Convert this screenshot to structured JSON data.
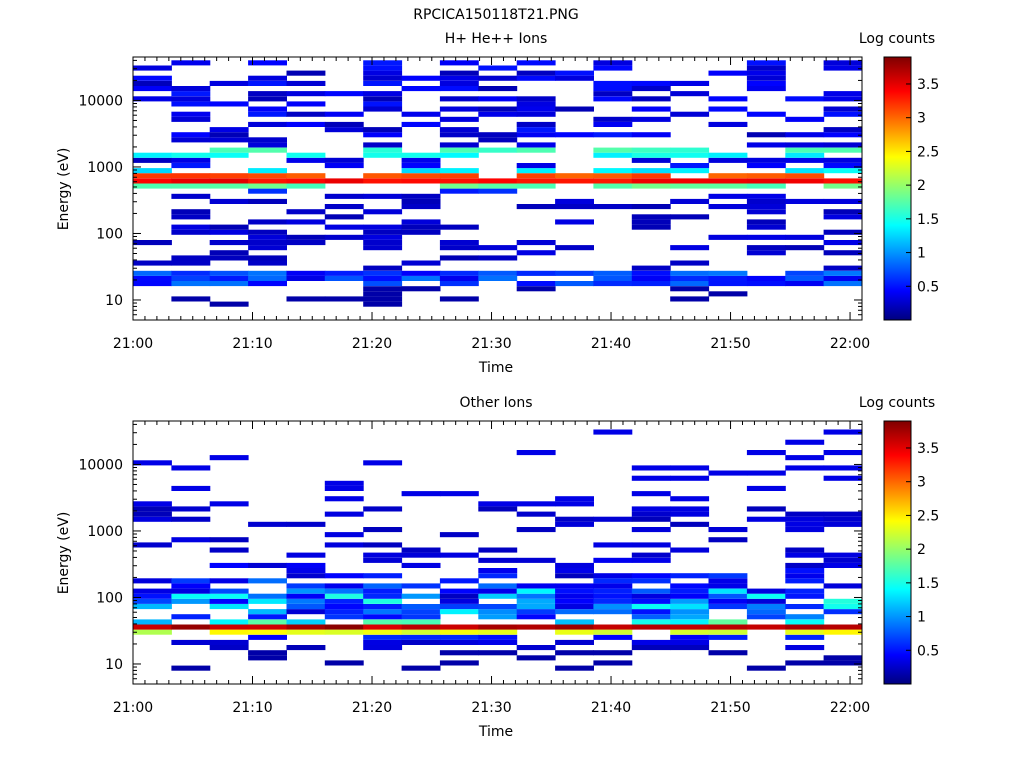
{
  "figure_title": "RPCICA150118T21.PNG",
  "chart_data": [
    {
      "type": "heatmap",
      "title": "H+ He++ Ions",
      "xlabel": "Time",
      "ylabel": "Energy (eV)",
      "x_ticks": [
        "21:00",
        "21:10",
        "21:20",
        "21:30",
        "21:40",
        "21:50",
        "22:00"
      ],
      "x_range_minutes": [
        0,
        61
      ],
      "y_scale": "log",
      "y_range": [
        5,
        45000
      ],
      "y_ticks": [
        "10",
        "100",
        "1000",
        "10000"
      ],
      "colorbar": {
        "label": "Log counts",
        "range": [
          0,
          3.9
        ],
        "ticks": [
          "0.5",
          "1",
          "1.5",
          "2",
          "2.5",
          "3",
          "3.5"
        ]
      },
      "time_bins": 19,
      "energy_bins": 48,
      "grid": false
    },
    {
      "type": "heatmap",
      "title": "Other Ions",
      "xlabel": "Time",
      "ylabel": "Energy (eV)",
      "x_ticks": [
        "21:00",
        "21:10",
        "21:20",
        "21:30",
        "21:40",
        "21:50",
        "22:00"
      ],
      "x_range_minutes": [
        0,
        61
      ],
      "y_scale": "log",
      "y_range": [
        5,
        45000
      ],
      "y_ticks": [
        "10",
        "100",
        "1000",
        "10000"
      ],
      "colorbar": {
        "label": "Log counts",
        "range": [
          0,
          3.9
        ],
        "ticks": [
          "0.5",
          "1",
          "1.5",
          "2",
          "2.5",
          "3",
          "3.5"
        ]
      },
      "time_bins": 19,
      "energy_bins": 48,
      "grid": false
    }
  ]
}
